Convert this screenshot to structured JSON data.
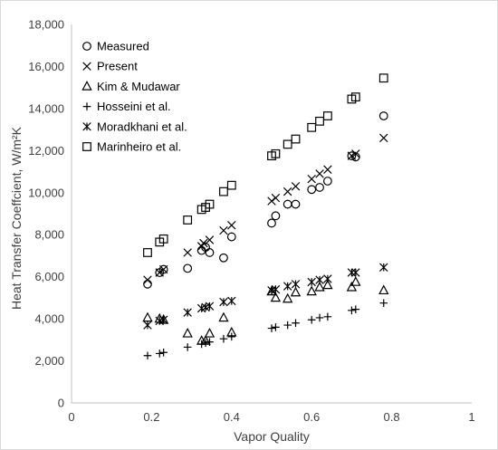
{
  "chart_data": {
    "type": "scatter",
    "title": "",
    "xlabel": "Vapor Quality",
    "ylabel": "Heat Transfer Coeffcient, W/m²K",
    "xlim": [
      0,
      1
    ],
    "ylim": [
      0,
      18000
    ],
    "x_ticks": [
      0,
      0.2,
      0.4,
      0.6,
      0.8,
      1
    ],
    "x_tick_labels": [
      "0",
      "0.2",
      "0.4",
      "0.6",
      "0.8",
      "1"
    ],
    "y_ticks": [
      0,
      2000,
      4000,
      6000,
      8000,
      10000,
      12000,
      14000,
      16000,
      18000
    ],
    "y_tick_labels": [
      "0",
      "2,000",
      "4,000",
      "6,000",
      "8,000",
      "10,000",
      "12,000",
      "14,000",
      "16,000",
      "18,000"
    ],
    "grid": false,
    "legend_position": "top-left (inside plot)",
    "marker_color": "#000000",
    "series": [
      {
        "name": "Measured",
        "marker": "circle",
        "points": [
          [
            0.19,
            5650
          ],
          [
            0.22,
            6200
          ],
          [
            0.23,
            6350
          ],
          [
            0.29,
            6400
          ],
          [
            0.325,
            7250
          ],
          [
            0.335,
            7400
          ],
          [
            0.345,
            7150
          ],
          [
            0.38,
            6900
          ],
          [
            0.4,
            7900
          ],
          [
            0.5,
            8550
          ],
          [
            0.51,
            8900
          ],
          [
            0.54,
            9450
          ],
          [
            0.56,
            9450
          ],
          [
            0.6,
            10150
          ],
          [
            0.62,
            10250
          ],
          [
            0.64,
            10550
          ],
          [
            0.7,
            11750
          ],
          [
            0.71,
            11700
          ],
          [
            0.78,
            13650
          ]
        ]
      },
      {
        "name": "Present",
        "marker": "x",
        "points": [
          [
            0.19,
            5850
          ],
          [
            0.22,
            6200
          ],
          [
            0.23,
            6350
          ],
          [
            0.29,
            7150
          ],
          [
            0.325,
            7450
          ],
          [
            0.33,
            7600
          ],
          [
            0.345,
            7750
          ],
          [
            0.38,
            8200
          ],
          [
            0.4,
            8450
          ],
          [
            0.5,
            9600
          ],
          [
            0.51,
            9750
          ],
          [
            0.54,
            10050
          ],
          [
            0.56,
            10300
          ],
          [
            0.6,
            10650
          ],
          [
            0.62,
            10900
          ],
          [
            0.64,
            11100
          ],
          [
            0.7,
            11750
          ],
          [
            0.71,
            11850
          ],
          [
            0.78,
            12600
          ]
        ]
      },
      {
        "name": "Kim & Mudawar",
        "marker": "triangle",
        "points": [
          [
            0.19,
            4050
          ],
          [
            0.22,
            4000
          ],
          [
            0.23,
            3950
          ],
          [
            0.29,
            3300
          ],
          [
            0.325,
            2950
          ],
          [
            0.335,
            2950
          ],
          [
            0.345,
            3300
          ],
          [
            0.38,
            4050
          ],
          [
            0.4,
            3350
          ],
          [
            0.5,
            5300
          ],
          [
            0.51,
            5000
          ],
          [
            0.54,
            4950
          ],
          [
            0.56,
            5250
          ],
          [
            0.6,
            5300
          ],
          [
            0.62,
            5500
          ],
          [
            0.64,
            5600
          ],
          [
            0.7,
            5500
          ],
          [
            0.71,
            5750
          ],
          [
            0.78,
            5350
          ]
        ]
      },
      {
        "name": "Hosseini et al.",
        "marker": "plus",
        "points": [
          [
            0.19,
            2250
          ],
          [
            0.22,
            2350
          ],
          [
            0.23,
            2400
          ],
          [
            0.29,
            2650
          ],
          [
            0.325,
            2800
          ],
          [
            0.335,
            2850
          ],
          [
            0.345,
            2900
          ],
          [
            0.38,
            3050
          ],
          [
            0.4,
            3150
          ],
          [
            0.5,
            3550
          ],
          [
            0.51,
            3600
          ],
          [
            0.54,
            3700
          ],
          [
            0.56,
            3800
          ],
          [
            0.6,
            3950
          ],
          [
            0.62,
            4050
          ],
          [
            0.64,
            4100
          ],
          [
            0.7,
            4400
          ],
          [
            0.71,
            4450
          ],
          [
            0.78,
            4750
          ]
        ]
      },
      {
        "name": "Moradkhani et al.",
        "marker": "asterisk",
        "points": [
          [
            0.19,
            3700
          ],
          [
            0.22,
            3900
          ],
          [
            0.23,
            3950
          ],
          [
            0.29,
            4300
          ],
          [
            0.325,
            4500
          ],
          [
            0.335,
            4550
          ],
          [
            0.345,
            4600
          ],
          [
            0.38,
            4800
          ],
          [
            0.4,
            4850
          ],
          [
            0.5,
            5350
          ],
          [
            0.51,
            5400
          ],
          [
            0.54,
            5550
          ],
          [
            0.56,
            5650
          ],
          [
            0.6,
            5750
          ],
          [
            0.62,
            5850
          ],
          [
            0.64,
            5900
          ],
          [
            0.7,
            6200
          ],
          [
            0.71,
            6200
          ],
          [
            0.78,
            6450
          ]
        ]
      },
      {
        "name": "Marinheiro et al.",
        "marker": "square",
        "points": [
          [
            0.19,
            7150
          ],
          [
            0.22,
            7650
          ],
          [
            0.23,
            7800
          ],
          [
            0.29,
            8700
          ],
          [
            0.325,
            9200
          ],
          [
            0.335,
            9300
          ],
          [
            0.345,
            9450
          ],
          [
            0.38,
            10050
          ],
          [
            0.4,
            10350
          ],
          [
            0.5,
            11750
          ],
          [
            0.51,
            11850
          ],
          [
            0.54,
            12300
          ],
          [
            0.56,
            12550
          ],
          [
            0.6,
            13100
          ],
          [
            0.62,
            13400
          ],
          [
            0.64,
            13650
          ],
          [
            0.7,
            14450
          ],
          [
            0.71,
            14550
          ],
          [
            0.78,
            15450
          ]
        ]
      }
    ]
  }
}
